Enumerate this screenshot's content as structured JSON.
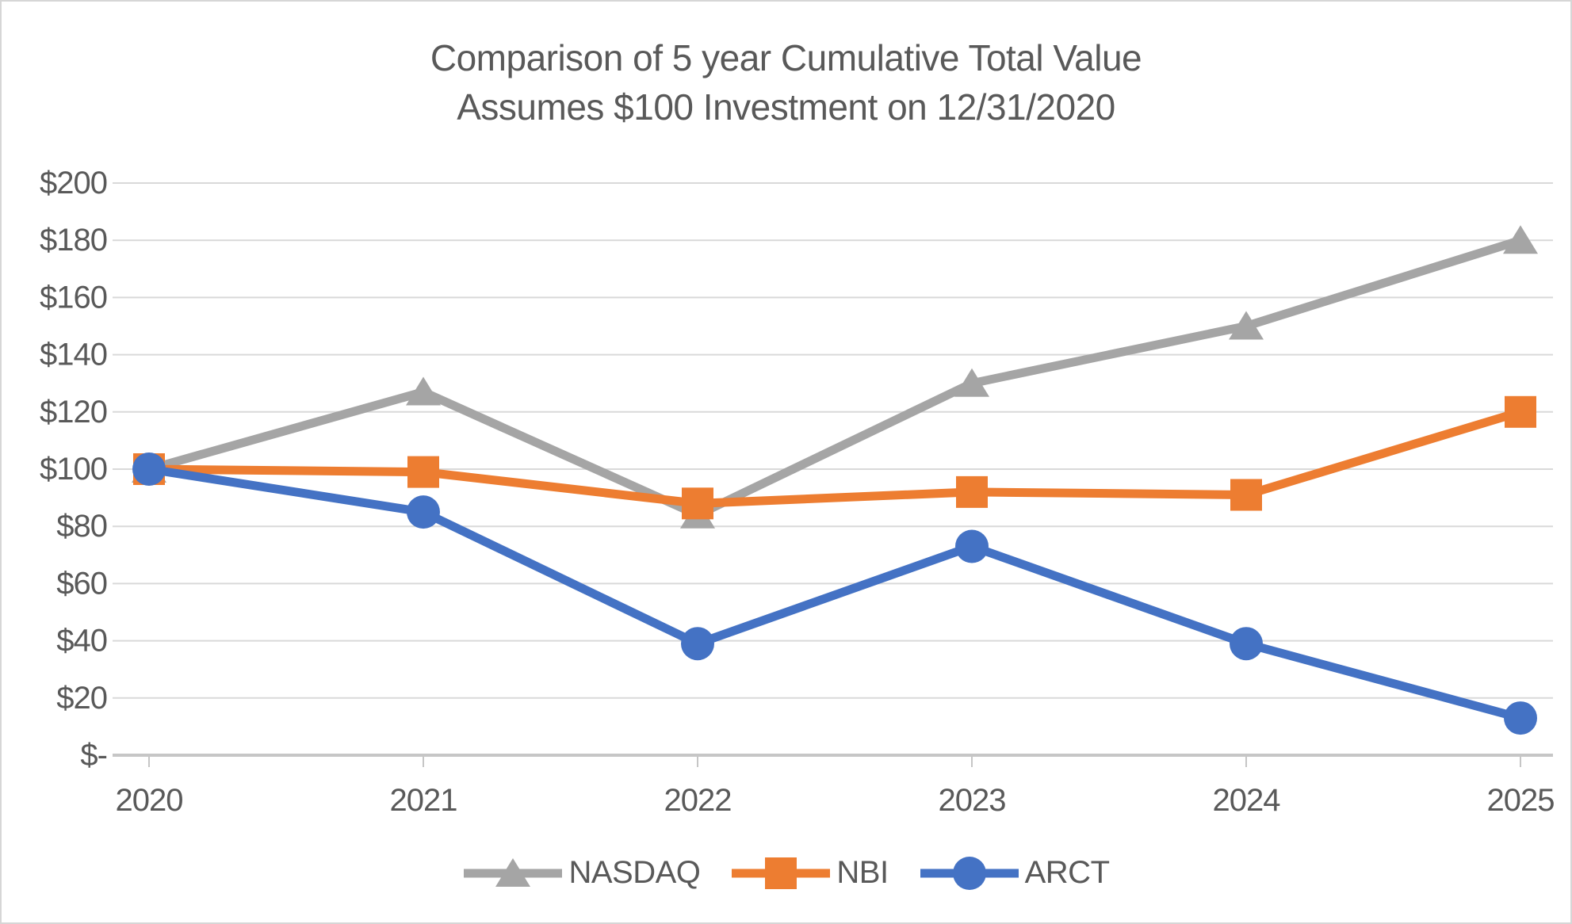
{
  "chart_data": {
    "type": "line",
    "title": "Comparison of 5 year Cumulative Total Value",
    "subtitle": "Assumes $100 Investment on 12/31/2020",
    "categories": [
      "2020",
      "2021",
      "2022",
      "2023",
      "2024",
      "2025"
    ],
    "series": [
      {
        "name": "NASDAQ",
        "marker": "triangle",
        "color": "#A5A5A5",
        "values": [
          100,
          127,
          84,
          130,
          150,
          180
        ]
      },
      {
        "name": "NBI",
        "marker": "square",
        "color": "#ED7D31",
        "values": [
          100,
          99,
          88,
          92,
          91,
          120
        ]
      },
      {
        "name": "ARCT",
        "marker": "circle",
        "color": "#4472C4",
        "values": [
          100,
          85,
          39,
          73,
          39,
          13
        ]
      }
    ],
    "y_axis": {
      "min": 0,
      "max": 200,
      "step": 20,
      "tick_labels": [
        "$-",
        "$20",
        "$40",
        "$60",
        "$80",
        "$100",
        "$120",
        "$140",
        "$160",
        "$180",
        "$200"
      ]
    },
    "x_axis": {
      "tick_labels": [
        "2020",
        "2021",
        "2022",
        "2023",
        "2024",
        "2025"
      ]
    },
    "grid": true,
    "legend_position": "bottom",
    "colors": {
      "grid": "#D9D9D9",
      "axis": "#C6C6C6",
      "text": "#595959",
      "background": "#FFFFFF",
      "frame_border": "#D6D6D6"
    }
  }
}
